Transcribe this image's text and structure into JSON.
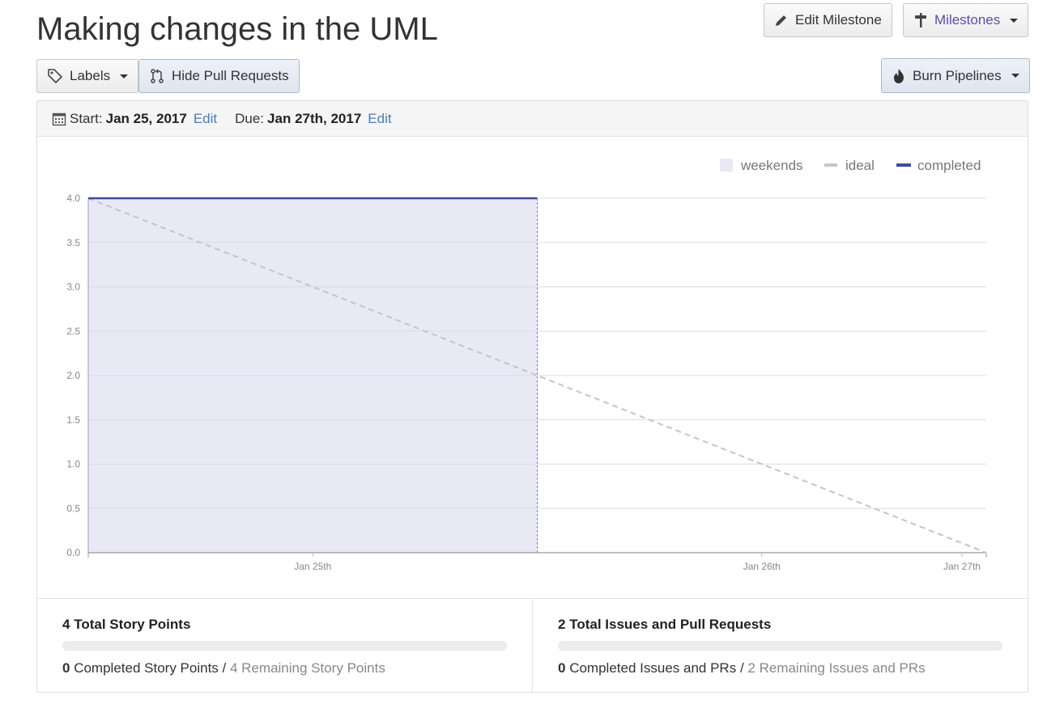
{
  "milestone": {
    "title": "Making changes in the UML",
    "edit_milestone_label": "Edit Milestone",
    "milestones_label": "Milestones",
    "labels_label": "Labels",
    "hide_prs_label": "Hide Pull Requests",
    "burn_pipelines_label": "Burn Pipelines"
  },
  "dates": {
    "start_label": "Start:",
    "start_value": "Jan 25, 2017",
    "start_edit": "Edit",
    "due_label": "Due:",
    "due_value": "Jan 27th, 2017",
    "due_edit": "Edit"
  },
  "colors": {
    "completed": "#3f4a9a",
    "ideal": "#c4c4cc",
    "weekends": "#e8e9f5",
    "accent_link": "#4a7db5"
  },
  "chart_data": {
    "type": "line",
    "title": "",
    "xlabel": "",
    "ylabel": "",
    "ylim": [
      0,
      4
    ],
    "yticks": [
      "0.0",
      "0.5",
      "1.0",
      "1.5",
      "2.0",
      "2.5",
      "3.0",
      "3.5",
      "4.0"
    ],
    "xticks": [
      "Jan 25th",
      "Jan 26th",
      "Jan 27th"
    ],
    "grid": true,
    "legend": {
      "placement": "top-right",
      "entries": [
        "weekends",
        "ideal",
        "completed"
      ]
    },
    "series": [
      {
        "name": "ideal",
        "style": "dashed",
        "points": [
          [
            "2017-01-25 00:00",
            4
          ],
          [
            "2017-01-27 00:00",
            0
          ]
        ]
      },
      {
        "name": "completed",
        "style": "solid",
        "points": [
          [
            "2017-01-25 00:00",
            4
          ],
          [
            "2017-01-26 00:00",
            4
          ]
        ]
      }
    ],
    "shaded_region": {
      "from": "2017-01-25 00:00",
      "to": "2017-01-26 00:00"
    }
  },
  "stats": {
    "story_points": {
      "total_count": "4",
      "total_label": "Total Story Points",
      "completed_count": "0",
      "completed_label": "Completed Story Points",
      "separator": "/",
      "remaining_text": "4 Remaining Story Points",
      "progress": 0
    },
    "issues": {
      "total_count": "2",
      "total_label": "Total Issues and Pull Requests",
      "completed_count": "0",
      "completed_label": "Completed Issues and PRs",
      "separator": "/",
      "remaining_text": "2 Remaining Issues and PRs",
      "progress": 0
    }
  }
}
